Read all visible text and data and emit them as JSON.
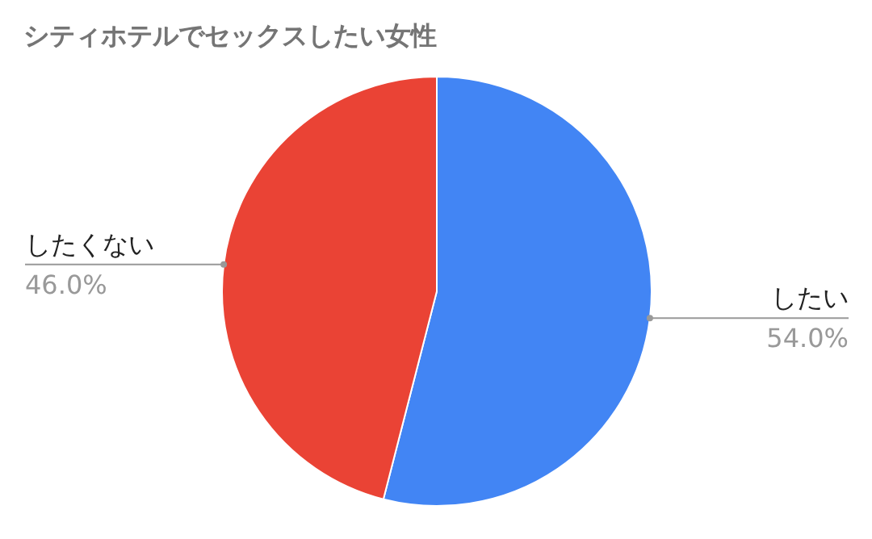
{
  "chart_data": {
    "type": "pie",
    "title": "シティホテルでセックスしたい女性",
    "categories": [
      "したい",
      "したくない"
    ],
    "values": [
      54,
      46
    ],
    "value_labels": [
      "54.0%",
      "46.0%"
    ],
    "colors": [
      "#4285f4",
      "#ea4335"
    ]
  }
}
